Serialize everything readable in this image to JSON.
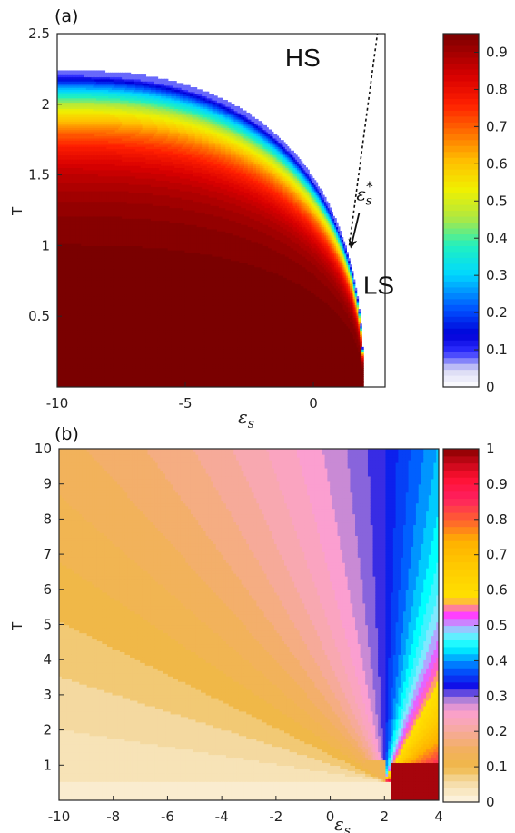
{
  "chart_data": [
    {
      "type": "heatmap",
      "panel_label": "(a)",
      "xlabel": "ε",
      "xlabel_sub": "s",
      "ylabel": "T",
      "xlim": [
        -10,
        2.8
      ],
      "ylim": [
        0,
        2.5
      ],
      "xticks": [
        -10,
        -5,
        0
      ],
      "yticks": [
        0.5,
        1,
        1.5,
        2,
        2.5
      ],
      "colorbar": {
        "range": [
          0,
          0.95
        ],
        "ticks": [
          0,
          0.1,
          0.2,
          0.3,
          0.4,
          0.5,
          0.6,
          0.7,
          0.8,
          0.9
        ],
        "colormap": "jet-white-low",
        "levels": 60
      },
      "boundary": {
        "eps_max": 1.95,
        "t_max": 2.24,
        "description": "filled region x <= eps_max, T below curved boundary"
      },
      "dashed_line": {
        "x": [
          1.4,
          2.5
        ],
        "y": [
          1.0,
          2.5
        ]
      },
      "annotations": [
        {
          "text": "HS",
          "x": -0.5,
          "y": 2.27
        },
        {
          "text": "LS",
          "x": 2.05,
          "y": 0.66
        },
        {
          "text": "ε",
          "sub": "s",
          "sup": "*",
          "x": 1.75,
          "y": 1.23,
          "arrow_to": [
            1.4,
            0.98
          ]
        }
      ]
    },
    {
      "type": "heatmap",
      "panel_label": "(b)",
      "xlabel": "ε",
      "xlabel_sub": "s",
      "ylabel": "T",
      "xlim": [
        -10,
        4
      ],
      "ylim": [
        0,
        10
      ],
      "xticks": [
        -10,
        -8,
        -6,
        -4,
        -2,
        0,
        2,
        4
      ],
      "yticks": [
        1,
        2,
        3,
        4,
        5,
        6,
        7,
        8,
        9,
        10
      ],
      "colorbar": {
        "range": [
          0,
          1
        ],
        "ticks": [
          0,
          0.1,
          0.2,
          0.3,
          0.4,
          0.5,
          0.6,
          0.7,
          0.8,
          0.9,
          1
        ],
        "colormap": "custom-cream-orange-pink-blue-cyan-yellow-red",
        "levels": 50
      },
      "focal_point": {
        "x": 2.0,
        "y": 0.55
      }
    }
  ],
  "colors": {
    "frame": "#262626",
    "text": "#222222",
    "background": "#ffffff",
    "dashed_line": "#111111"
  }
}
